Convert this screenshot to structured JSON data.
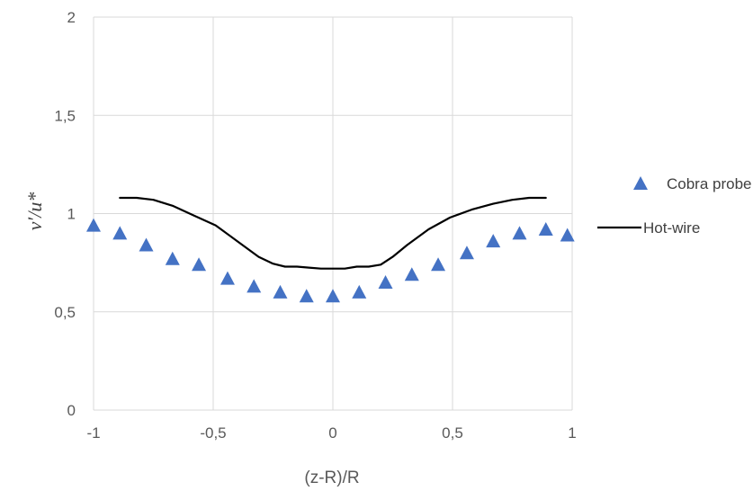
{
  "chart_data": {
    "type": "scatter",
    "title": "",
    "xlabel": "(z-R)/R",
    "ylabel": "v′/u*",
    "xlim": [
      -1,
      1
    ],
    "ylim": [
      0,
      2
    ],
    "x_ticks": [
      "-1",
      "-0,5",
      "0",
      "0,5",
      "1"
    ],
    "y_ticks": [
      "0",
      "0,5",
      "1",
      "1,5",
      "2"
    ],
    "x_tick_values": [
      -1,
      -0.5,
      0,
      0.5,
      1
    ],
    "y_tick_values": [
      0,
      0.5,
      1,
      1.5,
      2
    ],
    "grid": true,
    "legend_position": "right",
    "series": [
      {
        "name": "Cobra probe",
        "marker": "triangle",
        "color": "#4472C4",
        "x": [
          -1.0,
          -0.89,
          -0.78,
          -0.67,
          -0.56,
          -0.44,
          -0.33,
          -0.22,
          -0.11,
          0.0,
          0.11,
          0.22,
          0.33,
          0.44,
          0.56,
          0.67,
          0.78,
          0.89,
          0.98
        ],
        "y": [
          0.94,
          0.9,
          0.84,
          0.77,
          0.74,
          0.67,
          0.63,
          0.6,
          0.58,
          0.58,
          0.6,
          0.65,
          0.69,
          0.74,
          0.8,
          0.86,
          0.9,
          0.92,
          0.89
        ]
      },
      {
        "name": "Hot-wire",
        "marker": "line",
        "color": "#000000",
        "x": [
          -0.89,
          -0.82,
          -0.75,
          -0.67,
          -0.58,
          -0.49,
          -0.4,
          -0.31,
          -0.25,
          -0.2,
          -0.15,
          -0.1,
          -0.05,
          0.0,
          0.05,
          0.1,
          0.15,
          0.2,
          0.25,
          0.31,
          0.4,
          0.49,
          0.58,
          0.67,
          0.75,
          0.82,
          0.89
        ],
        "y": [
          1.08,
          1.08,
          1.07,
          1.04,
          0.99,
          0.94,
          0.86,
          0.78,
          0.745,
          0.73,
          0.73,
          0.725,
          0.72,
          0.72,
          0.72,
          0.73,
          0.73,
          0.74,
          0.78,
          0.84,
          0.92,
          0.98,
          1.02,
          1.05,
          1.07,
          1.08,
          1.08
        ]
      }
    ]
  }
}
